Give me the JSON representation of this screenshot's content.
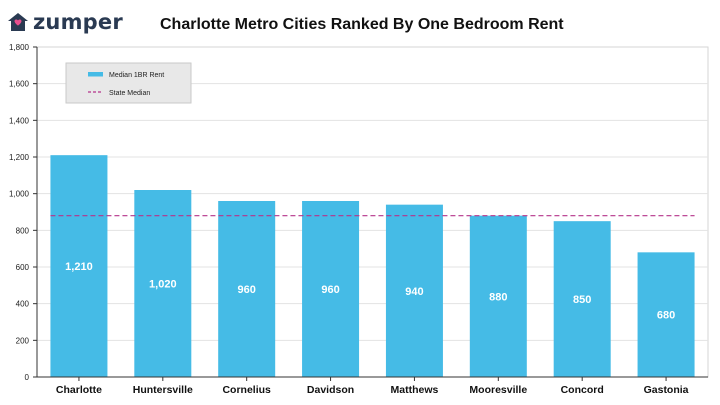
{
  "brand": {
    "name": "zumper",
    "logo_icon": "house-icon",
    "logo_color": "#2a3a52",
    "accent": "#e94e8e"
  },
  "chart_data": {
    "type": "bar",
    "title": "Charlotte Metro Cities Ranked By One Bedroom Rent",
    "categories": [
      "Charlotte",
      "Huntersville",
      "Cornelius",
      "Davidson",
      "Matthews",
      "Mooresville",
      "Concord",
      "Gastonia"
    ],
    "series": [
      {
        "name": "Median 1BR Rent",
        "values": [
          1210,
          1020,
          960,
          960,
          940,
          880,
          850,
          680
        ],
        "color": "#45bbe6"
      }
    ],
    "data_labels": [
      "1,210",
      "1,020",
      "960",
      "960",
      "940",
      "880",
      "850",
      "680"
    ],
    "reference_line": {
      "name": "State Median",
      "value": 880,
      "color": "#b5338a",
      "style": "dashed"
    },
    "ylim": [
      0,
      1800
    ],
    "y_ticks": [
      0,
      200,
      400,
      600,
      800,
      1000,
      1200,
      1400,
      1600,
      1800
    ],
    "y_tick_labels": [
      "0",
      "200",
      "400",
      "600",
      "800",
      "1,000",
      "1,200",
      "1,400",
      "1,600",
      "1,800"
    ],
    "grid": true,
    "legend_position": "top-left",
    "xlabel": "",
    "ylabel": ""
  }
}
